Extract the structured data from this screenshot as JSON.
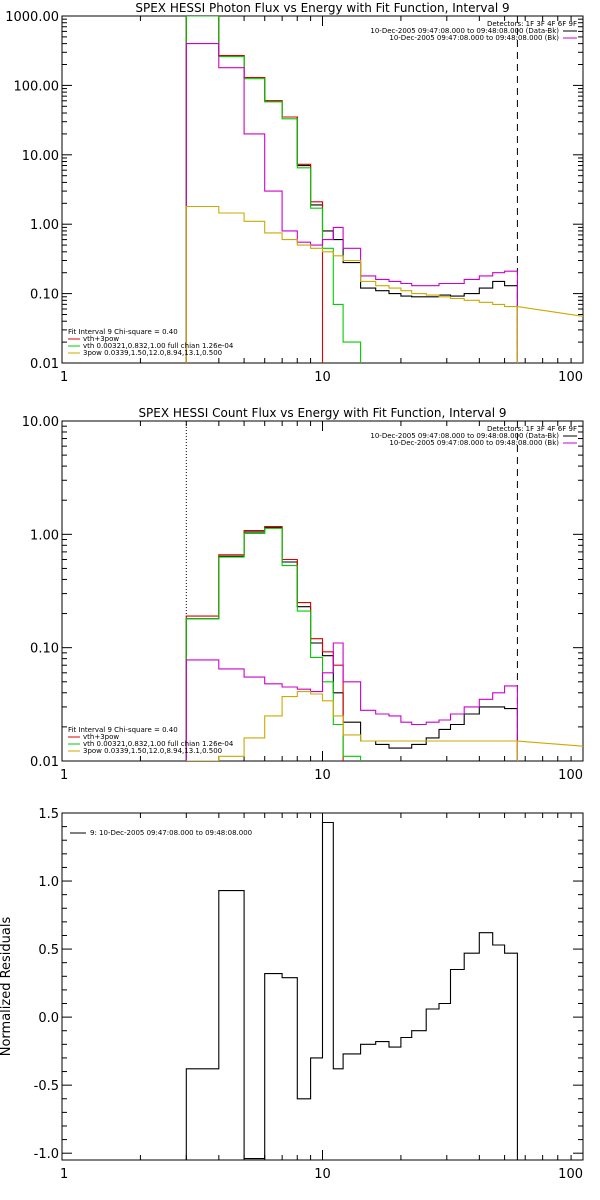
{
  "chart_data": [
    {
      "type": "line",
      "title": "SPEX HESSI Photon Flux vs Energy with Fit Function, Interval 9",
      "xscale": "log",
      "yscale": "log",
      "xlim": [
        1,
        100
      ],
      "ylim": [
        0.01,
        1000
      ],
      "xticklabels": [
        "1",
        "10",
        "100"
      ],
      "yticks": [
        0.01,
        0.1,
        1,
        10,
        100,
        1000
      ],
      "yticklabels": [
        "0.01",
        "0.10",
        "1.00",
        "10.00",
        "100.00",
        "1000.00"
      ],
      "vlines": [
        {
          "x": 3.0,
          "style": "dotted"
        },
        {
          "x": 56.0,
          "style": "dashed"
        }
      ],
      "legend_top_right": [
        {
          "text": "Detectors: 1F 3F 4F 6F 9F",
          "color": ""
        },
        {
          "text": "10-Dec-2005 09:47:08.000 to 09:48:08.000 (Data-Bk)",
          "color": "#000000"
        },
        {
          "text": "10-Dec-2005 09:47:08.000 to 09:48:08.000 (Bk)",
          "color": "#cc00cc"
        }
      ],
      "legend_bottom_left": [
        {
          "text": "Fit Interval 9    Chi-square = 0.40",
          "color": ""
        },
        {
          "text": "vth+3pow",
          "color": "#dd0000"
        },
        {
          "text": "vth 0.00321,0.832,1.00   full chian 1.26e-04",
          "color": "#00cc00"
        },
        {
          "text": "3pow 0.0339,1.50,12.0,8.94,13.1,0.500",
          "color": "#ccaa00"
        }
      ],
      "x_edges": [
        3,
        4,
        5,
        6,
        7,
        8,
        9,
        10,
        11,
        12,
        14,
        16,
        18,
        20,
        22,
        25,
        28,
        31,
        35,
        40,
        45,
        50,
        56
      ],
      "series": [
        {
          "name": "Data-Bk",
          "color": "#000000",
          "values": [
            1000,
            270,
            130,
            60,
            35,
            7,
            1.9,
            0.8,
            0.6,
            0.28,
            0.12,
            0.11,
            0.1,
            0.092,
            0.09,
            0.09,
            0.095,
            0.092,
            0.1,
            0.12,
            0.15,
            0.13
          ]
        },
        {
          "name": "vth+3pow",
          "color": "#dd0000",
          "values": [
            1000,
            270,
            130,
            60,
            35,
            7.3,
            2.1,
            null,
            null,
            null,
            null,
            null,
            null,
            null,
            null,
            null,
            null,
            null,
            null,
            null,
            null,
            null
          ]
        },
        {
          "name": "vth",
          "color": "#00cc00",
          "values": [
            1000,
            260,
            125,
            58,
            33,
            6.5,
            1.7,
            0.45,
            0.07,
            0.02,
            null,
            null,
            null,
            null,
            null,
            null,
            null,
            null,
            null,
            null,
            null,
            null
          ]
        },
        {
          "name": "Bk",
          "color": "#cc00cc",
          "values": [
            400,
            180,
            20,
            3,
            0.8,
            0.55,
            0.5,
            0.6,
            0.9,
            0.45,
            0.18,
            0.16,
            0.15,
            0.14,
            0.13,
            0.13,
            0.14,
            0.14,
            0.16,
            0.18,
            0.2,
            0.21
          ]
        },
        {
          "name": "3pow",
          "color": "#ccaa00",
          "values": [
            1.8,
            1.45,
            1.1,
            0.75,
            0.6,
            0.5,
            0.45,
            0.4,
            0.35,
            0.3,
            0.15,
            0.13,
            0.12,
            0.11,
            0.1,
            0.095,
            0.09,
            0.085,
            0.08,
            0.075,
            0.07,
            0.065
          ]
        }
      ],
      "pow_tail": [
        [
          56,
          0.065
        ],
        [
          100,
          0.047
        ]
      ]
    },
    {
      "type": "line",
      "title": "SPEX HESSI Count Flux vs Energy with Fit Function, Interval 9",
      "xscale": "log",
      "yscale": "log",
      "xlim": [
        1,
        100
      ],
      "ylim": [
        0.01,
        10
      ],
      "xticklabels": [
        "1",
        "10",
        "100"
      ],
      "yticks": [
        0.01,
        0.1,
        1,
        10
      ],
      "yticklabels": [
        "0.01",
        "0.10",
        "1.00",
        "10.00"
      ],
      "vlines": [
        {
          "x": 3.0,
          "style": "dotted"
        },
        {
          "x": 56.0,
          "style": "dashed"
        }
      ],
      "legend_top_right": [
        {
          "text": "Detectors: 1F 3F 4F 6F 9F",
          "color": ""
        },
        {
          "text": "10-Dec-2005 09:47:08.000 to 09:48:08.000 (Data-Bk)",
          "color": "#000000"
        },
        {
          "text": "10-Dec-2005 09:47:08.000 to 09:48:08.000 (Bk)",
          "color": "#cc00cc"
        }
      ],
      "legend_bottom_left": [
        {
          "text": "Fit Interval 9    Chi-square = 0.40",
          "color": ""
        },
        {
          "text": "vth+3pow",
          "color": "#dd0000"
        },
        {
          "text": "vth 0.00321,0.832,1.00   full chian 1.26e-04",
          "color": "#00cc00"
        },
        {
          "text": "3pow 0.0339,1.50,12.0,8.94,13.1,0.500",
          "color": "#ccaa00"
        }
      ],
      "x_edges": [
        3,
        4,
        5,
        6,
        7,
        8,
        9,
        10,
        11,
        12,
        14,
        16,
        18,
        20,
        22,
        25,
        28,
        31,
        35,
        40,
        45,
        50,
        56
      ],
      "series": [
        {
          "name": "Data-Bk",
          "color": "#000000",
          "values": [
            0.18,
            0.64,
            1.05,
            1.15,
            0.57,
            0.23,
            0.11,
            0.085,
            0.04,
            0.022,
            0.015,
            0.014,
            0.013,
            0.013,
            0.014,
            0.016,
            0.019,
            0.021,
            0.026,
            0.03,
            0.03,
            0.029
          ]
        },
        {
          "name": "vth+3pow",
          "color": "#dd0000",
          "values": [
            0.19,
            0.66,
            1.08,
            1.17,
            0.6,
            0.25,
            0.12,
            0.092,
            0.07,
            null,
            null,
            null,
            null,
            null,
            null,
            null,
            null,
            null,
            null,
            null,
            null,
            null
          ]
        },
        {
          "name": "vth",
          "color": "#00cc00",
          "values": [
            0.18,
            0.63,
            1.02,
            1.13,
            0.53,
            0.21,
            0.082,
            0.05,
            0.021,
            0.011,
            null,
            null,
            null,
            null,
            null,
            null,
            null,
            null,
            null,
            null,
            null,
            null
          ]
        },
        {
          "name": "Bk",
          "color": "#cc00cc",
          "values": [
            0.078,
            0.065,
            0.055,
            0.048,
            0.045,
            0.043,
            0.041,
            0.06,
            0.11,
            0.05,
            0.028,
            0.026,
            0.025,
            0.022,
            0.021,
            0.022,
            0.023,
            0.026,
            0.03,
            0.035,
            0.04,
            0.046
          ]
        },
        {
          "name": "3pow",
          "color": "#ccaa00",
          "values": [
            0.01,
            0.011,
            0.016,
            0.025,
            0.037,
            0.041,
            0.039,
            0.034,
            0.025,
            0.017,
            0.015,
            0.015,
            0.015,
            0.015,
            0.015,
            0.015,
            0.015,
            0.015,
            0.015,
            0.015,
            0.015,
            0.015
          ]
        }
      ],
      "pow_tail": [
        [
          56,
          0.015
        ],
        [
          100,
          0.0135
        ]
      ]
    },
    {
      "type": "line",
      "title": "",
      "xscale": "log",
      "yscale": "linear",
      "xlim": [
        1,
        100
      ],
      "ylim": [
        -1.05,
        1.5
      ],
      "xticklabels": [
        "1",
        "10",
        "100"
      ],
      "yticks": [
        -1.0,
        -0.5,
        0.0,
        0.5,
        1.0,
        1.5
      ],
      "yticklabels": [
        "-1.0",
        "-0.5",
        "0.0",
        "0.5",
        "1.0",
        "1.5"
      ],
      "ylabel": "Normalized Residuals",
      "legend_top_left": [
        {
          "text": "9: 10-Dec-2005 09:47:08.000 to 09:48:08.000",
          "color": "#000000"
        }
      ],
      "x_edges": [
        3,
        4,
        5,
        6,
        7,
        8,
        9,
        10,
        11,
        12,
        14,
        16,
        18,
        20,
        22,
        25,
        28,
        31,
        35,
        40,
        45,
        50,
        56
      ],
      "series": [
        {
          "name": "9: 10-Dec-2005 09:47:08.000 to 09:48:08.000",
          "color": "#000000",
          "values": [
            -0.38,
            0.93,
            -1.04,
            0.32,
            0.29,
            -0.6,
            -0.3,
            1.43,
            -0.38,
            -0.27,
            -0.2,
            -0.18,
            -0.22,
            -0.15,
            -0.1,
            0.06,
            0.1,
            0.35,
            0.47,
            0.62,
            0.53,
            0.47
          ]
        }
      ]
    }
  ]
}
